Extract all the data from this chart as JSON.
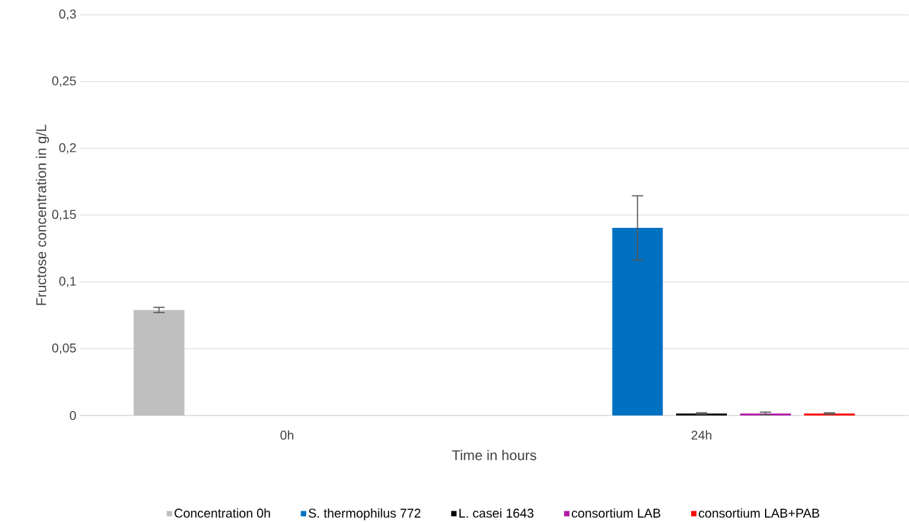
{
  "chart_data": {
    "type": "bar",
    "xlabel": "Time in hours",
    "ylabel": "Fructose concentration in g/L",
    "categories": [
      "0h",
      "24h"
    ],
    "series": [
      {
        "name": "Concentration 0h",
        "color": "#bfbfbf",
        "values": [
          0.079,
          null
        ],
        "errors": [
          0.002,
          null
        ]
      },
      {
        "name": "S. thermophilus 772",
        "color": "#0070c0",
        "values": [
          null,
          0.1405
        ],
        "errors": [
          null,
          0.024
        ]
      },
      {
        "name": "L. casei 1643",
        "color": "#000000",
        "values": [
          null,
          0.0015
        ],
        "errors": [
          null,
          0.0005
        ]
      },
      {
        "name": "consortium LAB",
        "color": "#b01ba5",
        "values": [
          null,
          0.0015
        ],
        "errors": [
          null,
          0.001
        ]
      },
      {
        "name": "consortium LAB+PAB",
        "color": "#ff0000",
        "values": [
          null,
          0.0015
        ],
        "errors": [
          null,
          0.0005
        ]
      }
    ],
    "ylim": [
      0,
      0.3
    ],
    "yticks": [
      {
        "value": 0,
        "label": "0"
      },
      {
        "value": 0.05,
        "label": "0,05"
      },
      {
        "value": 0.1,
        "label": "0,1"
      },
      {
        "value": 0.15,
        "label": "0,15"
      },
      {
        "value": 0.2,
        "label": "0,2"
      },
      {
        "value": 0.25,
        "label": "0,25"
      },
      {
        "value": 0.3,
        "label": "0,3"
      }
    ],
    "grid": "y",
    "legend": "bottom"
  }
}
